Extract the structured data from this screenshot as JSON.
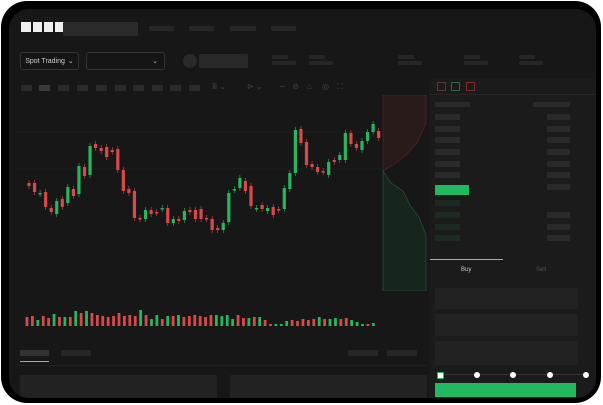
{
  "header": {
    "logo": "OKX"
  },
  "toolbar": {
    "market_selector": "Spot Trading",
    "market_chevron": "⌄",
    "pair_chevron": "⌄"
  },
  "colors": {
    "up": "#26b75e",
    "down": "#d84a4a",
    "accent": "#22b85f",
    "background": "#171717"
  },
  "chart": {
    "type": "candlestick",
    "candles": [
      [
        118,
        115
      ],
      [
        118,
        109
      ],
      [
        107,
        108
      ],
      [
        109,
        94
      ],
      [
        93,
        89
      ],
      [
        87,
        100
      ],
      [
        102,
        94
      ],
      [
        98,
        114
      ],
      [
        112,
        105
      ],
      [
        107,
        135
      ],
      [
        134,
        125
      ],
      [
        126,
        155
      ],
      [
        157,
        153
      ],
      [
        153,
        150
      ],
      [
        154,
        144
      ],
      [
        151,
        149
      ],
      [
        152,
        131
      ],
      [
        131,
        110
      ],
      [
        112,
        108
      ],
      [
        110,
        83
      ],
      [
        83,
        82
      ],
      [
        82,
        91
      ],
      [
        91,
        87
      ],
      [
        89,
        88
      ],
      [
        92,
        93
      ],
      [
        93,
        78
      ],
      [
        78,
        82
      ],
      [
        82,
        80
      ],
      [
        81,
        90
      ],
      [
        91,
        89
      ],
      [
        91,
        82
      ],
      [
        92,
        82
      ],
      [
        83,
        82
      ],
      [
        82,
        71
      ],
      [
        73,
        71
      ],
      [
        71,
        78
      ],
      [
        79,
        108
      ],
      [
        111,
        112
      ],
      [
        113,
        123
      ],
      [
        120,
        110
      ],
      [
        115,
        95
      ],
      [
        92,
        93
      ],
      [
        96,
        92
      ],
      [
        90,
        93
      ],
      [
        94,
        86
      ],
      [
        92,
        91
      ],
      [
        92,
        113
      ],
      [
        112,
        128
      ],
      [
        128,
        171
      ],
      [
        172,
        158
      ],
      [
        159,
        136
      ],
      [
        137,
        134
      ],
      [
        134,
        129
      ],
      [
        130,
        129
      ],
      [
        126,
        139
      ],
      [
        141,
        139
      ],
      [
        141,
        146
      ],
      [
        141,
        168
      ],
      [
        168,
        157
      ],
      [
        157,
        153
      ],
      [
        151,
        160
      ],
      [
        160,
        169
      ],
      [
        169,
        177
      ],
      [
        170,
        163
      ],
      [
        164,
        170
      ]
    ],
    "volumes": [
      9,
      10,
      6,
      10,
      8,
      12,
      9,
      9,
      9,
      15,
      13,
      15,
      13,
      11,
      10,
      9,
      10,
      13,
      10,
      11,
      10,
      16,
      11,
      7,
      11,
      7,
      10,
      10,
      11,
      9,
      10,
      11,
      10,
      9,
      11,
      11,
      10,
      11,
      7,
      11,
      8,
      8,
      9,
      9,
      6,
      2,
      2,
      2,
      5,
      6,
      5,
      7,
      6,
      7,
      9,
      7,
      7,
      8,
      7,
      8,
      6,
      4,
      2,
      2,
      3
    ],
    "volume_up": [
      false,
      false,
      true,
      false,
      false,
      true,
      false,
      true,
      false,
      true,
      false,
      true,
      false,
      false,
      false,
      false,
      false,
      false,
      false,
      false,
      false,
      true,
      false,
      true,
      true,
      false,
      true,
      false,
      true,
      false,
      false,
      false,
      false,
      false,
      false,
      true,
      true,
      true,
      true,
      false,
      false,
      true,
      false,
      true,
      false,
      false,
      true,
      true,
      true,
      false,
      false,
      false,
      false,
      false,
      true,
      false,
      true,
      true,
      false,
      false,
      true,
      true,
      true,
      false,
      true
    ]
  },
  "trade": {
    "tabs": [
      "Buy",
      "Sell"
    ],
    "active_tab": "Buy",
    "slider_value": 0,
    "slider_steps": [
      0,
      25,
      50,
      75,
      100
    ]
  }
}
